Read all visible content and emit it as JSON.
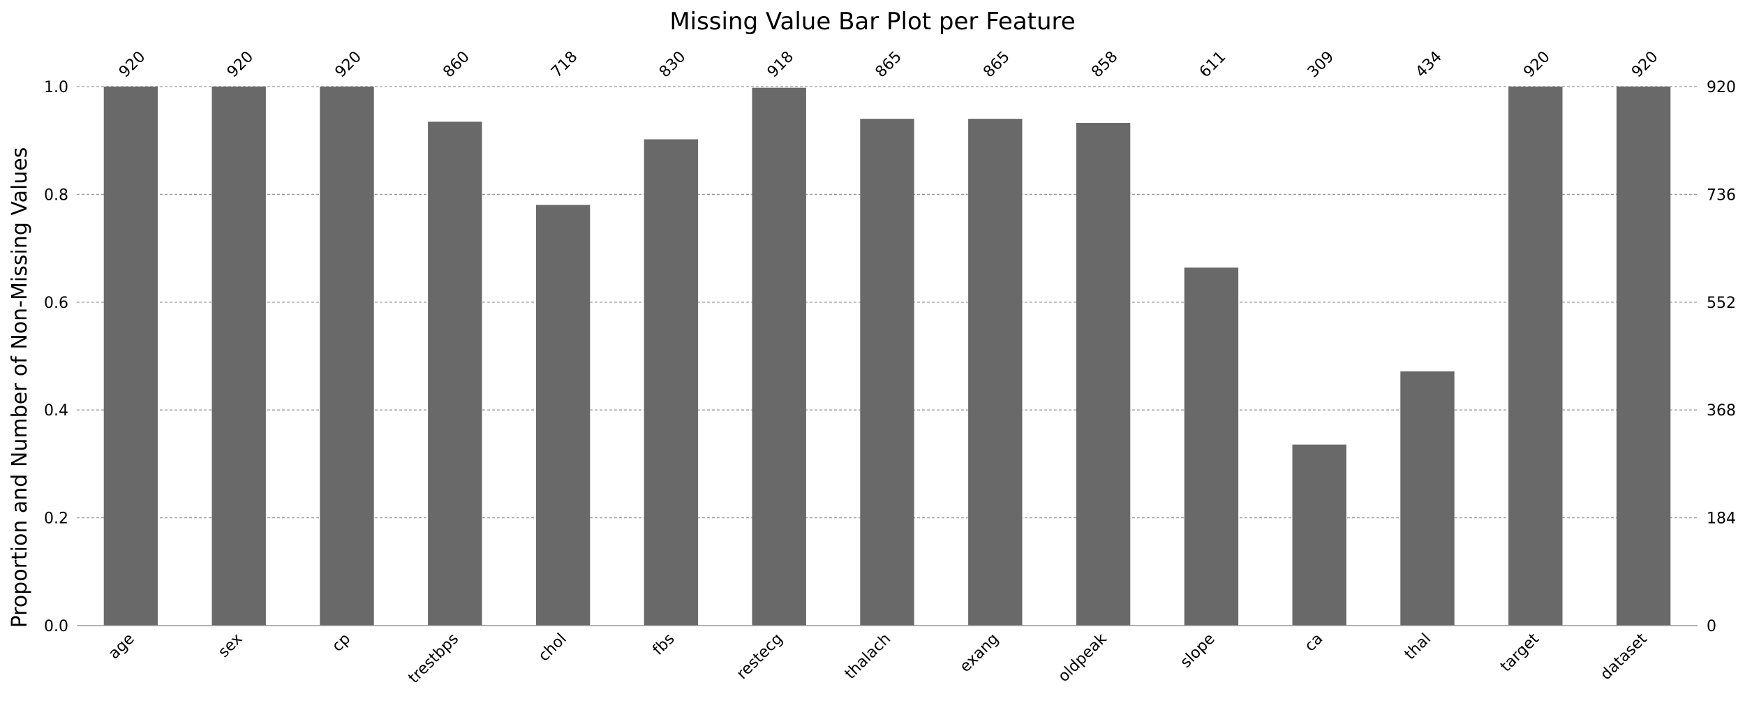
{
  "chart_data": {
    "type": "bar",
    "title": "Missing Value Bar Plot per Feature",
    "xlabel": "",
    "ylabel": "Proportion and Number of Non-Missing Values",
    "categories": [
      "age",
      "sex",
      "cp",
      "trestbps",
      "chol",
      "fbs",
      "restecg",
      "thalach",
      "exang",
      "oldpeak",
      "slope",
      "ca",
      "thal",
      "target",
      "dataset"
    ],
    "counts": [
      920,
      920,
      920,
      860,
      718,
      830,
      918,
      865,
      865,
      858,
      611,
      309,
      434,
      920,
      920
    ],
    "total": 920,
    "ylim": [
      0,
      1.0
    ],
    "y_ticks": [
      "0.0",
      "0.2",
      "0.4",
      "0.6",
      "0.8",
      "1.0"
    ],
    "y_right_ticks": [
      "0",
      "184",
      "368",
      "552",
      "736",
      "920"
    ],
    "grid": true,
    "bar_color": "#696969",
    "grid_color": "#999999"
  }
}
